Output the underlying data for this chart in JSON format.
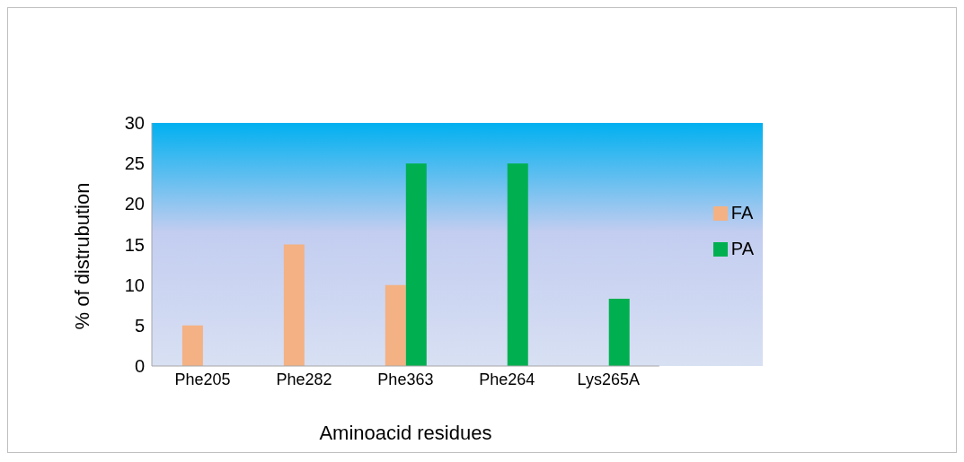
{
  "chart_data": {
    "type": "bar",
    "xlabel": "Aminoacid residues",
    "ylabel": "% of distrubution",
    "categories": [
      "Phe205",
      "Phe282",
      "Phe363",
      "Phe264",
      "Lys265A"
    ],
    "series": [
      {
        "name": "FA",
        "color": "#f4b183",
        "values": [
          5,
          15,
          10,
          null,
          null
        ]
      },
      {
        "name": "PA",
        "color": "#00b050",
        "values": [
          null,
          null,
          25,
          25,
          8.3
        ]
      }
    ],
    "ylim": [
      0,
      30
    ],
    "yticks": [
      0,
      5,
      10,
      15,
      20,
      25,
      30
    ],
    "grid": false,
    "legend": "right"
  }
}
